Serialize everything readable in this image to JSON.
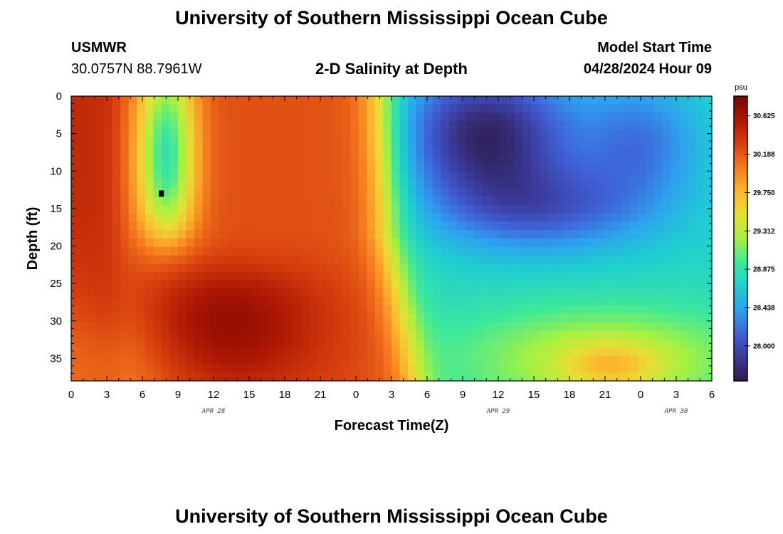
{
  "page": {
    "title": "University of Southern Mississippi Ocean Cube",
    "footer_title": "University of Southern Mississippi Ocean Cube",
    "station_name": "USMWR",
    "station_coords": "30.0757N  88.7961W",
    "subtitle": "2-D Salinity at Depth",
    "model_start_label": "Model Start Time",
    "model_start_value": "04/28/2024 Hour 09"
  },
  "chart_data": {
    "type": "heatmap",
    "title": "2-D Salinity at Depth",
    "xlabel": "Forecast Time(Z)",
    "ylabel": "Depth (ft)",
    "x_tick_labels": [
      "0",
      "3",
      "6",
      "9",
      "12",
      "15",
      "18",
      "21",
      "0",
      "3",
      "6",
      "9",
      "12",
      "15",
      "18",
      "21",
      "0",
      "3",
      "6"
    ],
    "x_date_labels": [
      {
        "text": "APR 28",
        "hour_index": 12
      },
      {
        "text": "APR 29",
        "hour_index": 36
      },
      {
        "text": "APR 30",
        "hour_index": 51
      }
    ],
    "x_range_hours": [
      0,
      54
    ],
    "y_ticks": [
      0,
      5,
      10,
      15,
      20,
      25,
      30,
      35
    ],
    "y_range": [
      0,
      38
    ],
    "y_inverted": true,
    "colorbar": {
      "unit": "psu",
      "ticks": [
        "30.625",
        "30.188",
        "29.750",
        "29.312",
        "28.875",
        "28.438",
        "28.000"
      ],
      "range": [
        27.6,
        30.85
      ],
      "colors": [
        "#2d1b4b",
        "#3b3a9a",
        "#3f62d8",
        "#2ea0f0",
        "#1fcfd0",
        "#3ee89b",
        "#a5f141",
        "#e6e035",
        "#fdb52e",
        "#f57a1e",
        "#d8400e",
        "#ad1703",
        "#7a0403"
      ]
    },
    "marker": {
      "hour": 7.6,
      "depth": 13
    }
  }
}
